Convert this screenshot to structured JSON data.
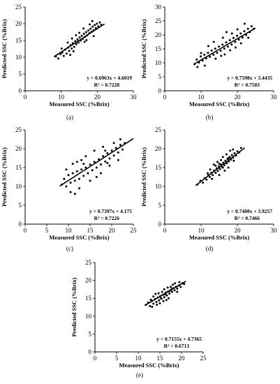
{
  "figure": {
    "xlabel": "Measured SSC (%Brix)",
    "ylabel": "Predicted SSC (%Brix)"
  },
  "chart_data": [
    {
      "type": "scatter",
      "caption": "(a)",
      "xlabel": "Measured SSC (%Brix)",
      "ylabel": "Predicted SSC (%Brix)",
      "xlim": [
        0,
        30
      ],
      "ylim": [
        0,
        25
      ],
      "xticks": [
        0,
        10,
        20,
        30
      ],
      "yticks": [
        0,
        5,
        10,
        15,
        20,
        25
      ],
      "fit": {
        "slope": 0.6963,
        "intercept": 4.6019,
        "r2": 0.7228,
        "x_range": [
          8,
          22
        ]
      },
      "equation": "y = 0.6963x + 4.6019",
      "r2_label": "R² = 0.7228",
      "points": [
        [
          8.5,
          10.2
        ],
        [
          9.2,
          9.6
        ],
        [
          9.8,
          10.9
        ],
        [
          10.3,
          11.4
        ],
        [
          10.7,
          10.4
        ],
        [
          11.1,
          12.3
        ],
        [
          11.5,
          11.1
        ],
        [
          11.9,
          12.9
        ],
        [
          12.2,
          11.9
        ],
        [
          12.6,
          13.6
        ],
        [
          12.9,
          12.6
        ],
        [
          13.2,
          14.2
        ],
        [
          13.6,
          13.1
        ],
        [
          13.9,
          14.8
        ],
        [
          14.2,
          13.9
        ],
        [
          14.5,
          15.3
        ],
        [
          14.8,
          14.4
        ],
        [
          15.1,
          15.9
        ],
        [
          15.4,
          15.0
        ],
        [
          15.7,
          16.4
        ],
        [
          16.0,
          15.5
        ],
        [
          16.3,
          17.0
        ],
        [
          16.6,
          16.1
        ],
        [
          16.9,
          17.5
        ],
        [
          17.2,
          16.6
        ],
        [
          17.5,
          18.0
        ],
        [
          17.8,
          17.2
        ],
        [
          18.1,
          18.5
        ],
        [
          18.4,
          17.6
        ],
        [
          18.7,
          19.1
        ],
        [
          19.0,
          18.1
        ],
        [
          19.3,
          19.6
        ],
        [
          19.6,
          18.7
        ],
        [
          19.9,
          20.0
        ],
        [
          20.3,
          19.2
        ],
        [
          20.7,
          20.4
        ],
        [
          21.1,
          19.7
        ],
        [
          11.8,
          14.4
        ],
        [
          13.4,
          11.8
        ],
        [
          15.0,
          17.3
        ],
        [
          16.5,
          14.6
        ],
        [
          17.9,
          19.8
        ],
        [
          19.0,
          16.3
        ],
        [
          14.1,
          16.6
        ],
        [
          17.0,
          15.1
        ],
        [
          12.5,
          10.7
        ],
        [
          18.6,
          20.8
        ],
        [
          10.1,
          12.6
        ],
        [
          16.2,
          18.6
        ],
        [
          13.0,
          15.6
        ]
      ]
    },
    {
      "type": "scatter",
      "caption": "(b)",
      "xlabel": "Measured SSC (%Brix)",
      "ylabel": "Predicted SSC (%Brix)",
      "xlim": [
        0,
        30
      ],
      "ylim": [
        0,
        30
      ],
      "xticks": [
        0,
        10,
        20,
        30
      ],
      "yticks": [
        0,
        5,
        10,
        15,
        20,
        25,
        30
      ],
      "fit": {
        "slope": 0.7598,
        "intercept": 3.4435,
        "r2": 0.7503,
        "x_range": [
          8,
          25
        ]
      },
      "equation": "y = 0.7598x + 3.4435",
      "r2_label": "R² = 0.7503",
      "points": [
        [
          8.2,
          9.5
        ],
        [
          8.8,
          11.2
        ],
        [
          9.4,
          10.1
        ],
        [
          9.9,
          12.3
        ],
        [
          10.4,
          10.8
        ],
        [
          10.9,
          12.9
        ],
        [
          11.4,
          11.6
        ],
        [
          11.9,
          13.6
        ],
        [
          12.4,
          12.2
        ],
        [
          12.9,
          14.4
        ],
        [
          13.4,
          12.9
        ],
        [
          13.9,
          15.1
        ],
        [
          14.4,
          13.6
        ],
        [
          14.9,
          15.8
        ],
        [
          15.4,
          14.3
        ],
        [
          15.9,
          16.5
        ],
        [
          16.4,
          15.1
        ],
        [
          16.9,
          17.3
        ],
        [
          17.4,
          15.8
        ],
        [
          17.9,
          18.1
        ],
        [
          18.4,
          16.6
        ],
        [
          18.9,
          18.9
        ],
        [
          19.4,
          17.5
        ],
        [
          19.9,
          19.7
        ],
        [
          20.4,
          18.3
        ],
        [
          20.9,
          20.5
        ],
        [
          21.4,
          19.1
        ],
        [
          21.9,
          21.3
        ],
        [
          22.4,
          20.0
        ],
        [
          22.9,
          22.2
        ],
        [
          23.4,
          21.0
        ],
        [
          23.9,
          23.1
        ],
        [
          24.5,
          22.2
        ],
        [
          12.0,
          16.0
        ],
        [
          14.0,
          11.5
        ],
        [
          16.0,
          19.0
        ],
        [
          18.0,
          14.5
        ],
        [
          20.0,
          22.0
        ],
        [
          21.0,
          17.0
        ],
        [
          11.0,
          9.0
        ],
        [
          17.0,
          21.0
        ],
        [
          19.5,
          15.5
        ],
        [
          13.5,
          17.5
        ],
        [
          15.5,
          12.5
        ],
        [
          22.0,
          24.0
        ],
        [
          10.0,
          13.5
        ],
        [
          23.0,
          19.0
        ],
        [
          9.0,
          8.5
        ],
        [
          16.5,
          13.0
        ],
        [
          18.5,
          20.5
        ]
      ]
    },
    {
      "type": "scatter",
      "caption": "(c)",
      "xlabel": "Measured SSC (%Brix)",
      "ylabel": "Predicted SSC (%Brix)",
      "xlim": [
        0,
        25
      ],
      "ylim": [
        0,
        25
      ],
      "xticks": [
        0,
        5,
        10,
        15,
        20,
        25
      ],
      "yticks": [
        0,
        5,
        10,
        15,
        20,
        25
      ],
      "fit": {
        "slope": 0.7397,
        "intercept": 4.175,
        "r2": 0.7226,
        "x_range": [
          8,
          25
        ]
      },
      "equation": "y = 0.7397x + 4.175",
      "r2_label": "R² = 0.7226",
      "points": [
        [
          8.5,
          10.5
        ],
        [
          9.0,
          12.0
        ],
        [
          9.5,
          10.0
        ],
        [
          10.0,
          13.0
        ],
        [
          10.5,
          11.0
        ],
        [
          11.0,
          13.5
        ],
        [
          11.5,
          11.5
        ],
        [
          12.0,
          14.0
        ],
        [
          12.5,
          12.0
        ],
        [
          13.0,
          14.5
        ],
        [
          13.5,
          12.8
        ],
        [
          14.0,
          15.0
        ],
        [
          14.5,
          13.5
        ],
        [
          15.0,
          15.8
        ],
        [
          15.5,
          14.3
        ],
        [
          16.0,
          16.5
        ],
        [
          16.5,
          15.0
        ],
        [
          17.0,
          17.2
        ],
        [
          17.5,
          15.8
        ],
        [
          18.0,
          18.0
        ],
        [
          18.5,
          16.6
        ],
        [
          19.0,
          18.8
        ],
        [
          19.5,
          17.4
        ],
        [
          20.0,
          19.5
        ],
        [
          20.5,
          18.2
        ],
        [
          21.0,
          20.2
        ],
        [
          21.5,
          19.0
        ],
        [
          22.0,
          21.0
        ],
        [
          22.5,
          19.8
        ],
        [
          23.0,
          21.5
        ],
        [
          10.5,
          8.5
        ],
        [
          11.0,
          16.0
        ],
        [
          12.5,
          9.5
        ],
        [
          13.0,
          17.0
        ],
        [
          15.0,
          11.5
        ],
        [
          16.0,
          19.5
        ],
        [
          17.5,
          13.5
        ],
        [
          18.0,
          20.5
        ],
        [
          19.5,
          15.5
        ],
        [
          20.5,
          21.5
        ],
        [
          14.0,
          18.0
        ],
        [
          9.5,
          14.5
        ],
        [
          21.5,
          17.0
        ],
        [
          12.0,
          16.5
        ],
        [
          16.5,
          12.5
        ],
        [
          18.5,
          19.5
        ],
        [
          22.0,
          22.5
        ],
        [
          11.5,
          8.0
        ],
        [
          13.5,
          16.0
        ],
        [
          19.0,
          16.2
        ]
      ]
    },
    {
      "type": "scatter",
      "caption": "(d)",
      "xlabel": "Measured SSC (%Brix)",
      "ylabel": "Predicted SSC (%Brix)",
      "xlim": [
        0,
        30
      ],
      "ylim": [
        0,
        25
      ],
      "xticks": [
        0,
        10,
        20,
        30
      ],
      "yticks": [
        0,
        5,
        10,
        15,
        20,
        25
      ],
      "fit": {
        "slope": 0.7408,
        "intercept": 3.9257,
        "r2": 0.7466,
        "x_range": [
          8.5,
          22
        ]
      },
      "equation": "y = 0.7408x + 3.9257",
      "r2_label": "R² = 0.7466",
      "points": [
        [
          9.0,
          10.5
        ],
        [
          9.8,
          11.5
        ],
        [
          10.5,
          11.0
        ],
        [
          11.0,
          12.2
        ],
        [
          11.5,
          11.8
        ],
        [
          12.0,
          13.0
        ],
        [
          12.4,
          12.5
        ],
        [
          12.8,
          13.6
        ],
        [
          13.2,
          13.0
        ],
        [
          13.6,
          14.2
        ],
        [
          14.0,
          13.6
        ],
        [
          14.3,
          14.8
        ],
        [
          14.6,
          14.1
        ],
        [
          14.9,
          15.3
        ],
        [
          15.2,
          14.6
        ],
        [
          15.5,
          15.8
        ],
        [
          15.8,
          15.1
        ],
        [
          16.1,
          16.3
        ],
        [
          16.4,
          15.6
        ],
        [
          16.7,
          16.8
        ],
        [
          17.0,
          16.1
        ],
        [
          17.3,
          17.3
        ],
        [
          17.6,
          16.6
        ],
        [
          17.9,
          17.8
        ],
        [
          18.2,
          17.1
        ],
        [
          18.5,
          18.3
        ],
        [
          18.8,
          17.6
        ],
        [
          19.2,
          18.8
        ],
        [
          19.6,
          18.2
        ],
        [
          20.0,
          19.3
        ],
        [
          20.5,
          19.0
        ],
        [
          21.0,
          20.2
        ],
        [
          13.5,
          15.8
        ],
        [
          15.0,
          13.0
        ],
        [
          16.0,
          17.8
        ],
        [
          17.5,
          15.0
        ],
        [
          12.5,
          14.5
        ],
        [
          18.0,
          19.5
        ],
        [
          14.5,
          16.5
        ],
        [
          16.5,
          14.2
        ],
        [
          15.5,
          17.0
        ],
        [
          17.0,
          18.5
        ],
        [
          19.0,
          16.8
        ],
        [
          13.0,
          12.0
        ],
        [
          14.0,
          15.5
        ],
        [
          16.0,
          15.0
        ],
        [
          15.0,
          16.0
        ],
        [
          17.5,
          17.5
        ],
        [
          11.8,
          13.5
        ],
        [
          18.8,
          19.8
        ]
      ]
    },
    {
      "type": "scatter",
      "caption": "(e)",
      "xlabel": "Measured SSC (%Brix)",
      "ylabel": "Predicted SSC (%Brix)",
      "xlim": [
        0,
        25
      ],
      "ylim": [
        0,
        25
      ],
      "xticks": [
        0,
        5,
        10,
        15,
        20,
        25
      ],
      "yticks": [
        0,
        5,
        10,
        15,
        20,
        25
      ],
      "fit": {
        "slope": 0.7155,
        "intercept": 4.7365,
        "r2": 0.6713,
        "x_range": [
          11.5,
          21
        ]
      },
      "equation": "y = 0.7155x + 4.7365",
      "r2_label": "R² = 0.6713",
      "points": [
        [
          11.8,
          13.2
        ],
        [
          12.3,
          13.8
        ],
        [
          12.7,
          12.8
        ],
        [
          13.1,
          14.3
        ],
        [
          13.5,
          13.5
        ],
        [
          13.9,
          14.8
        ],
        [
          14.2,
          14.0
        ],
        [
          14.5,
          15.2
        ],
        [
          14.8,
          14.4
        ],
        [
          15.1,
          15.6
        ],
        [
          15.4,
          14.9
        ],
        [
          15.7,
          16.0
        ],
        [
          16.0,
          15.3
        ],
        [
          16.3,
          16.4
        ],
        [
          16.6,
          15.8
        ],
        [
          16.9,
          16.9
        ],
        [
          17.2,
          16.3
        ],
        [
          17.5,
          17.3
        ],
        [
          17.8,
          16.8
        ],
        [
          18.1,
          17.8
        ],
        [
          18.4,
          17.2
        ],
        [
          18.7,
          18.2
        ],
        [
          19.0,
          17.7
        ],
        [
          19.4,
          18.6
        ],
        [
          19.8,
          18.2
        ],
        [
          20.2,
          19.2
        ],
        [
          20.6,
          19.0
        ],
        [
          14.0,
          16.2
        ],
        [
          15.0,
          13.6
        ],
        [
          16.0,
          17.5
        ],
        [
          17.0,
          15.0
        ],
        [
          18.0,
          18.8
        ],
        [
          15.5,
          16.8
        ],
        [
          16.5,
          14.5
        ],
        [
          17.5,
          18.2
        ],
        [
          13.5,
          15.5
        ],
        [
          19.0,
          16.8
        ],
        [
          15.2,
          15.0
        ],
        [
          16.2,
          16.1
        ],
        [
          17.2,
          17.0
        ],
        [
          14.3,
          13.2
        ],
        [
          18.5,
          19.2
        ],
        [
          16.8,
          18.0
        ],
        [
          15.8,
          14.2
        ],
        [
          13.2,
          12.6
        ],
        [
          17.8,
          17.6
        ],
        [
          19.5,
          19.5
        ],
        [
          14.7,
          16.4
        ],
        [
          16.4,
          16.6
        ],
        [
          12.9,
          14.6
        ]
      ]
    }
  ]
}
